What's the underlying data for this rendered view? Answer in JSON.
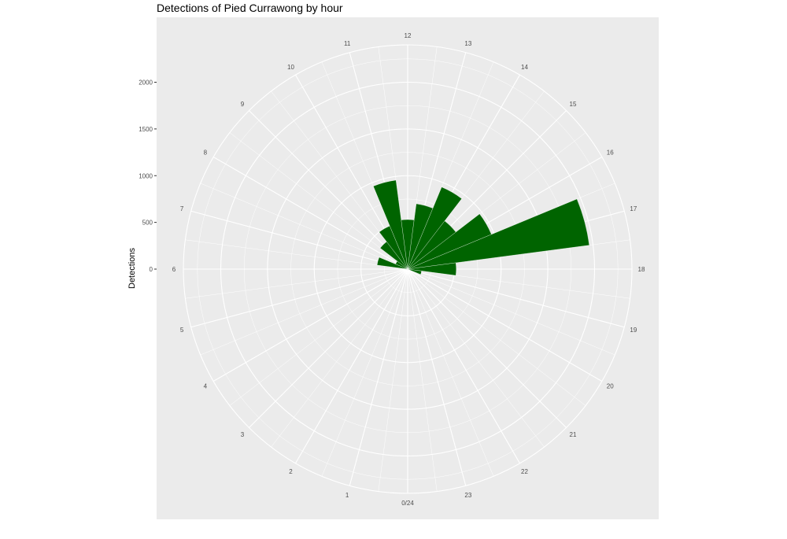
{
  "chart_data": {
    "type": "bar",
    "coordinate_system": "polar",
    "title": "Detections of Pied Currawong by hour",
    "xlabel": "",
    "ylabel": "Detections",
    "ylim": [
      0,
      2400
    ],
    "yticks": [
      0,
      500,
      1000,
      1500,
      2000
    ],
    "hour_labels": [
      "0/24",
      "1",
      "2",
      "3",
      "4",
      "5",
      "6",
      "7",
      "8",
      "9",
      "10",
      "11",
      "12",
      "13",
      "14",
      "15",
      "16",
      "17",
      "18",
      "19",
      "20",
      "21",
      "22",
      "23"
    ],
    "categories": [
      0,
      1,
      2,
      3,
      4,
      5,
      6,
      7,
      8,
      9,
      10,
      11,
      12,
      13,
      14,
      15,
      16,
      17,
      18,
      19,
      20,
      21,
      22,
      23
    ],
    "values": [
      10,
      5,
      5,
      5,
      5,
      5,
      20,
      330,
      140,
      370,
      500,
      960,
      530,
      705,
      950,
      650,
      970,
      1960,
      520,
      150,
      10,
      5,
      5,
      5
    ],
    "bar_color": "#006400",
    "panel_background": "#ebebeb",
    "grid": true
  }
}
